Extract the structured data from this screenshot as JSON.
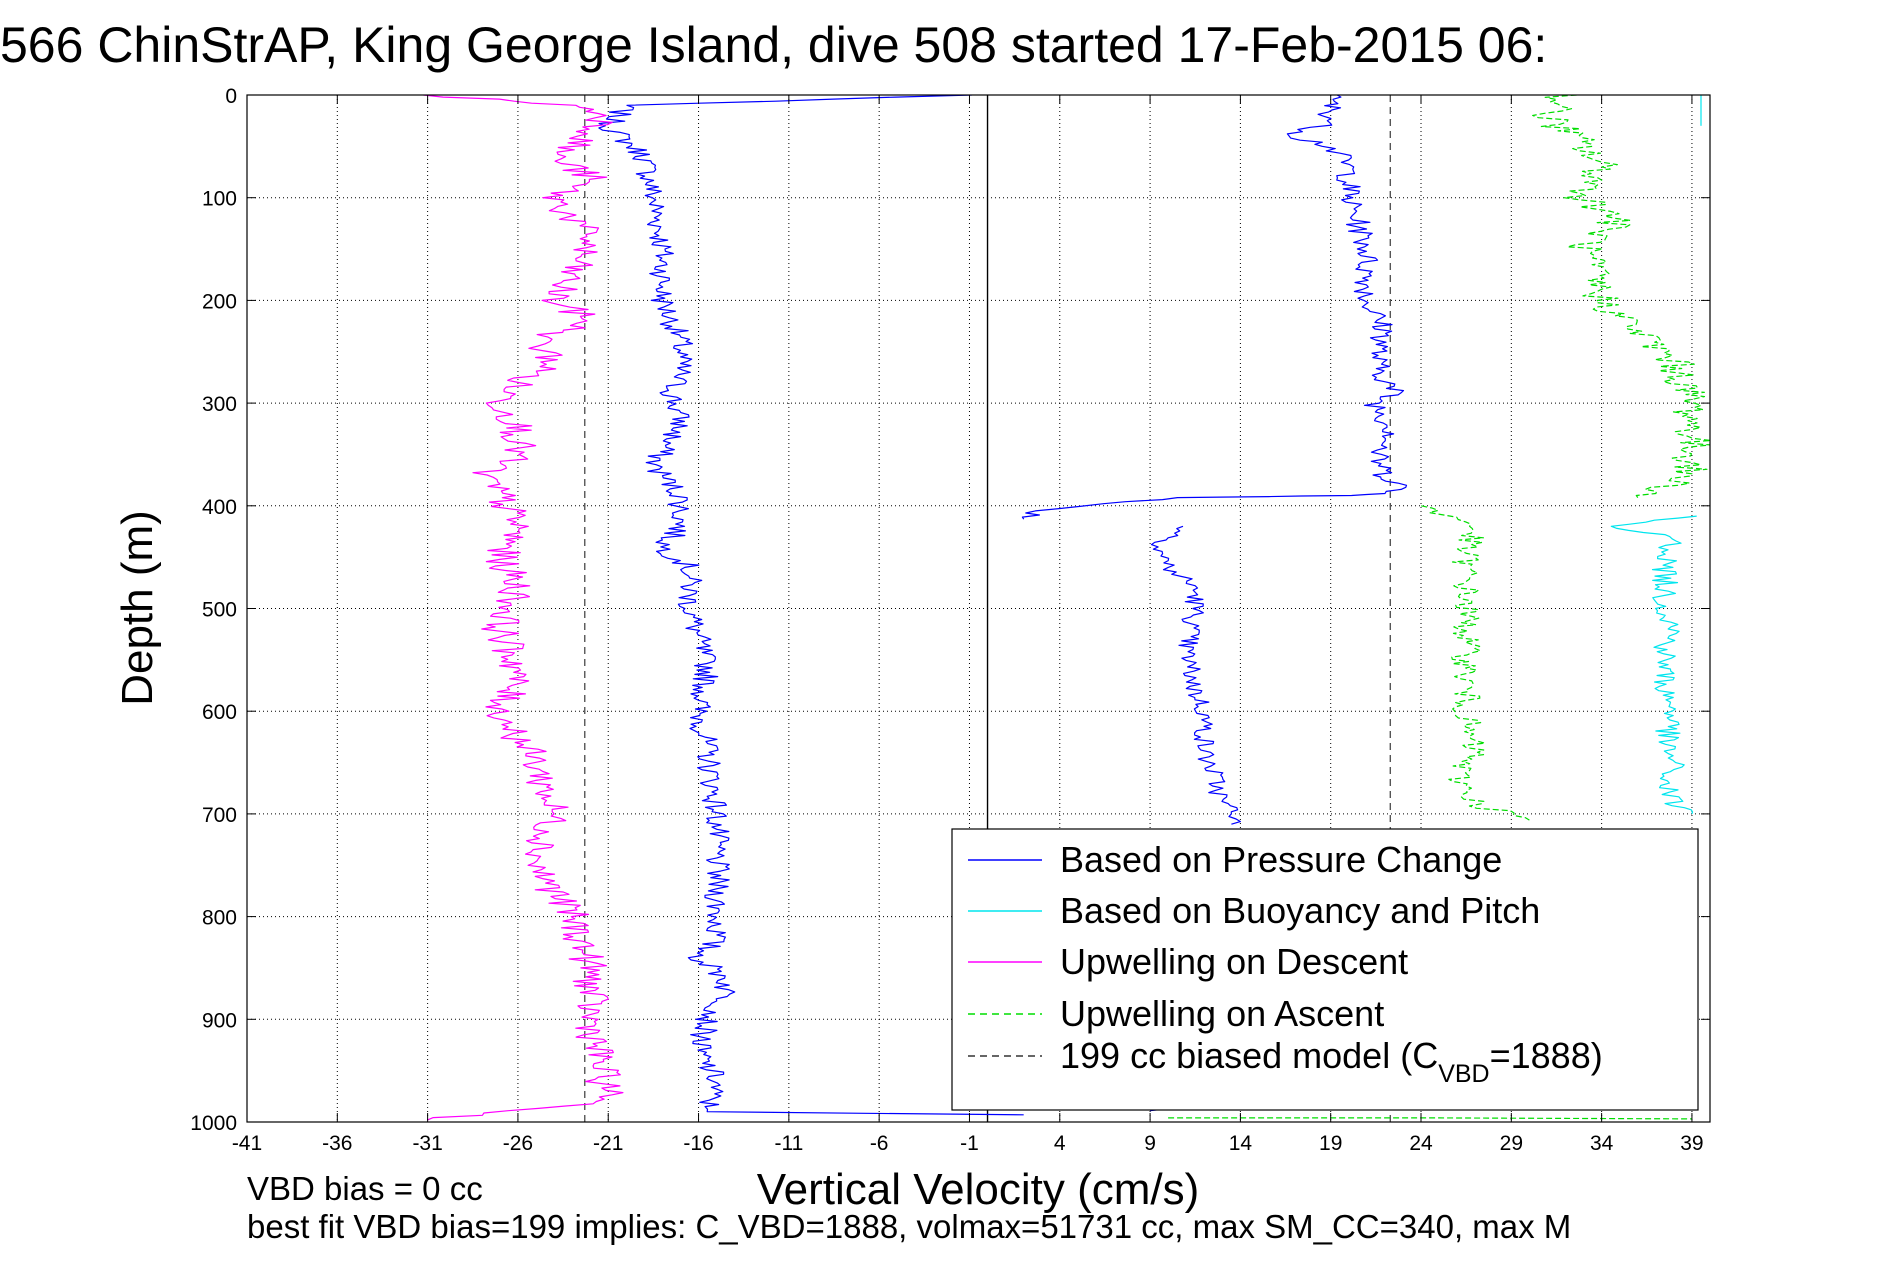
{
  "chart_data": {
    "type": "line",
    "title": "566 ChinStrAP, King George Island, dive 508 started 17-Feb-2015 06:",
    "xlabel": "Vertical Velocity (cm/s)",
    "ylabel": "Depth (m)",
    "xlim": [
      -41,
      40
    ],
    "ylim": [
      0,
      1000
    ],
    "y_reversed": true,
    "grid": true,
    "legend_position": "bottom-right",
    "xticks": [
      -41,
      -36,
      -31,
      -26,
      -21,
      -16,
      -11,
      -6,
      -1,
      4,
      9,
      14,
      19,
      24,
      29,
      34,
      39
    ],
    "yticks": [
      0,
      100,
      200,
      300,
      400,
      500,
      600,
      700,
      800,
      900,
      1000
    ],
    "vertical_lines": [
      {
        "x": -22.3,
        "color": "#555555",
        "style": "dashed"
      },
      {
        "x": 0,
        "color": "#000000",
        "style": "solid"
      },
      {
        "x": 22.3,
        "color": "#555555",
        "style": "dashed"
      }
    ],
    "legend": [
      {
        "label": "Based on Pressure Change",
        "color": "#0000ff",
        "dash": "solid"
      },
      {
        "label": "Based on Buoyancy and Pitch",
        "color": "#00e5ee",
        "dash": "solid"
      },
      {
        "label": "Upwelling on Descent",
        "color": "#ff00ff",
        "dash": "solid"
      },
      {
        "label": "Upwelling on Ascent",
        "color": "#00dd00",
        "dash": "dashed"
      },
      {
        "label_main": "199 cc biased model (C",
        "label_sub": "VBD",
        "label_tail": "=1888)",
        "color": "#333333",
        "dash": "dashed"
      }
    ],
    "series": [
      {
        "name": "Based on Pressure Change",
        "color": "#0000ff",
        "dash": "solid",
        "noise": 0.7,
        "x": [
          -1,
          -20,
          -21,
          -19,
          -18.5,
          -18,
          -18,
          -17,
          -17,
          -17.5,
          -17,
          -18.5,
          -17,
          -17,
          -18,
          -16.5,
          -16.5,
          -15.5,
          -16,
          -15.5,
          -15,
          -15,
          -15,
          -16,
          -14.5,
          -14.5,
          -15.5,
          -16,
          -15,
          -15.5,
          -15,
          2
        ],
        "y": [
          0,
          10,
          30,
          60,
          100,
          150,
          200,
          240,
          270,
          290,
          320,
          360,
          390,
          420,
          440,
          460,
          500,
          560,
          600,
          640,
          700,
          760,
          820,
          840,
          860,
          880,
          900,
          930,
          960,
          985,
          990,
          993
        ]
      },
      {
        "name": "Pressure Change (ascent)",
        "color": "#0000ff",
        "dash": "solid",
        "noise": 0.7,
        "x": [
          19,
          19,
          17,
          19,
          20,
          20,
          21,
          21,
          22,
          21.5,
          22.5,
          21.5,
          22.5,
          21.5,
          22,
          23,
          22,
          20,
          16,
          11,
          6,
          3,
          2
        ],
        "y": [
          0,
          25,
          40,
          50,
          70,
          100,
          150,
          200,
          230,
          260,
          290,
          300,
          330,
          350,
          370,
          380,
          388,
          390,
          391,
          392,
          398,
          405,
          413
        ]
      },
      {
        "name": "Pressure Change (ascent, deep)",
        "color": "#0000ff",
        "dash": "solid",
        "noise": 0.6,
        "x": [
          11,
          9.5,
          10,
          11.5,
          11.5,
          11,
          11.5,
          12,
          12,
          12.5,
          13,
          14,
          13.5,
          13.5
        ],
        "y": [
          420,
          440,
          460,
          480,
          500,
          540,
          580,
          600,
          640,
          660,
          690,
          700,
          705,
          710
        ]
      },
      {
        "name": "Pressure Change (bottom)",
        "color": "#0000ff",
        "dash": "solid",
        "noise": 0,
        "x": [
          9,
          9.5,
          10.5,
          11.5
        ],
        "y": [
          989,
          988,
          986,
          984
        ]
      },
      {
        "name": "Upwelling on Descent",
        "color": "#ff00ff",
        "dash": "solid",
        "noise": 1.0,
        "x": [
          -31,
          -23,
          -21,
          -22,
          -24,
          -22,
          -24,
          -22,
          -23,
          -24,
          -22,
          -25,
          -24,
          -26,
          -27,
          -26,
          -26,
          -28,
          -27,
          -26,
          -27,
          -26,
          -27,
          -26,
          -27,
          -25,
          -24,
          -25,
          -23,
          -22,
          -22,
          -21,
          -31
        ],
        "y": [
          0,
          10,
          20,
          40,
          60,
          80,
          100,
          140,
          170,
          200,
          220,
          240,
          260,
          280,
          300,
          320,
          350,
          370,
          390,
          420,
          450,
          480,
          520,
          560,
          600,
          650,
          700,
          750,
          800,
          850,
          900,
          980,
          998
        ]
      },
      {
        "name": "Upwelling on Ascent",
        "color": "#00dd00",
        "dash": "dashed",
        "noise": 1.1,
        "x": [
          32,
          31,
          33,
          34,
          33,
          35,
          33,
          34,
          36,
          38,
          39,
          39,
          39,
          38,
          36
        ],
        "y": [
          0,
          20,
          50,
          70,
          100,
          120,
          150,
          200,
          230,
          260,
          300,
          330,
          360,
          380,
          392
        ]
      },
      {
        "name": "Upwelling on Ascent (deep)",
        "color": "#00dd00",
        "dash": "dashed",
        "noise": 0.8,
        "x": [
          24,
          27,
          26.5,
          26.5,
          26.5,
          26.5,
          26.5,
          26.5,
          27,
          26,
          27,
          30
        ],
        "y": [
          400,
          420,
          440,
          480,
          520,
          560,
          600,
          620,
          640,
          660,
          690,
          706
        ]
      },
      {
        "name": "Upwelling on Ascent (bottom)",
        "color": "#00dd00",
        "dash": "dashed",
        "noise": 0,
        "x": [
          10,
          25,
          39
        ],
        "y": [
          996,
          996,
          997
        ]
      },
      {
        "name": "Based on Buoyancy and Pitch",
        "color": "#00e5ee",
        "dash": "solid",
        "noise": 0,
        "x": [
          39.5,
          39.5,
          39.5,
          39.5
        ],
        "y": [
          0,
          10,
          20,
          30
        ]
      },
      {
        "name": "Buoyancy and Pitch (deep)",
        "color": "#00e5ee",
        "dash": "solid",
        "noise": 0.7,
        "x": [
          39,
          34,
          38,
          37.5,
          37.5,
          38,
          37.5,
          37.5,
          38,
          37.5,
          38,
          37.5,
          38,
          39
        ],
        "y": [
          410,
          420,
          430,
          460,
          500,
          520,
          540,
          580,
          600,
          630,
          650,
          670,
          690,
          700
        ]
      }
    ]
  },
  "footer": {
    "line1": "VBD bias = 0 cc",
    "line2": "best fit VBD bias=199 implies: C_VBD=1888, volmax=51731 cc, max SM_CC=340, max M"
  }
}
